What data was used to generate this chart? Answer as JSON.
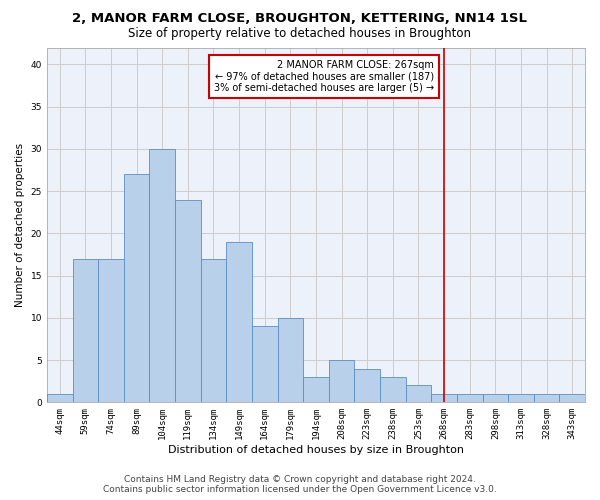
{
  "title1": "2, MANOR FARM CLOSE, BROUGHTON, KETTERING, NN14 1SL",
  "title2": "Size of property relative to detached houses in Broughton",
  "xlabel": "Distribution of detached houses by size in Broughton",
  "ylabel": "Number of detached properties",
  "footer1": "Contains HM Land Registry data © Crown copyright and database right 2024.",
  "footer2": "Contains public sector information licensed under the Open Government Licence v3.0.",
  "categories": [
    "44sqm",
    "59sqm",
    "74sqm",
    "89sqm",
    "104sqm",
    "119sqm",
    "134sqm",
    "149sqm",
    "164sqm",
    "179sqm",
    "194sqm",
    "208sqm",
    "223sqm",
    "238sqm",
    "253sqm",
    "268sqm",
    "283sqm",
    "298sqm",
    "313sqm",
    "328sqm",
    "343sqm"
  ],
  "values": [
    1,
    17,
    17,
    27,
    30,
    24,
    17,
    19,
    9,
    10,
    3,
    5,
    4,
    3,
    2,
    1,
    1,
    1,
    1,
    1,
    1
  ],
  "bar_color": "#b8d0ea",
  "bar_edge_color": "#5b8ec4",
  "vline_index": 15,
  "vline_color": "#cc0000",
  "vline_label": "2 MANOR FARM CLOSE: 267sqm",
  "annotation_line2": "← 97% of detached houses are smaller (187)",
  "annotation_line3": "3% of semi-detached houses are larger (5) →",
  "annotation_box_color": "#cc0000",
  "ylim": [
    0,
    42
  ],
  "yticks": [
    0,
    5,
    10,
    15,
    20,
    25,
    30,
    35,
    40
  ],
  "grid_color": "#cccccc",
  "bg_color": "#edf2fa",
  "title1_fontsize": 9.5,
  "title2_fontsize": 8.5,
  "xlabel_fontsize": 8,
  "ylabel_fontsize": 7.5,
  "tick_fontsize": 6.5,
  "ann_fontsize": 7,
  "footer_fontsize": 6.5
}
